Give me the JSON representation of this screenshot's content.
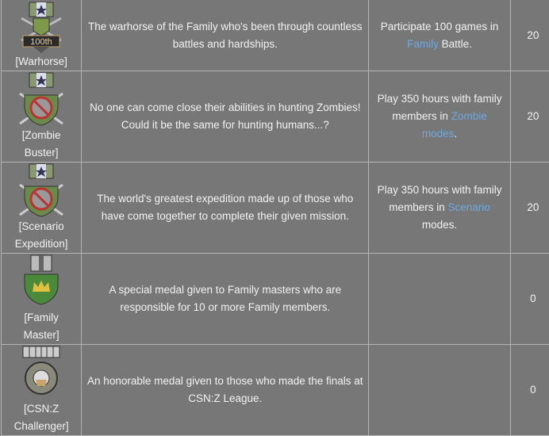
{
  "rows": [
    {
      "name": "[Warhorse]",
      "medal": "warhorse-medal-icon",
      "description": "The warhorse of the Family who's been through countless battles and hardships.",
      "req_pre": "Participate 100 games in ",
      "req_link": "Family",
      "req_post": " Battle.",
      "points": "20"
    },
    {
      "name": "[Zombie Buster]",
      "medal": "zombie-buster-medal-icon",
      "description": "No one can come close their abilities in hunting Zombies! Could it be the same for hunting humans...?",
      "req_pre": "Play 350 hours with family members in ",
      "req_link": "Zombie modes",
      "req_post": ".",
      "points": "20"
    },
    {
      "name": "[Scenario Expedition]",
      "medal": "scenario-expedition-medal-icon",
      "description": "The world's greatest expedition made up of those who have come together to complete their given mission.",
      "req_pre": "Play 350 hours with family members in ",
      "req_link": "Scenario",
      "req_post": " modes.",
      "points": "20"
    },
    {
      "name": "[Family Master]",
      "medal": "family-master-medal-icon",
      "description": "A special medal given to Family masters who are responsible for 10 or more Family members.",
      "req_pre": "",
      "req_link": "",
      "req_post": "",
      "points": "0"
    },
    {
      "name": "[CSN:Z Challenger]",
      "medal": "csnz-challenger-medal-icon",
      "description": "An honorable medal given to those who made the finals at CSN:Z League.",
      "req_pre": "",
      "req_link": "",
      "req_post": "",
      "points": "0"
    }
  ],
  "medal_text": "100th",
  "colors": {
    "background": "#777777",
    "border": "#b5b5b5",
    "link": "#6fa8e0",
    "text": "#f2f2f2"
  }
}
